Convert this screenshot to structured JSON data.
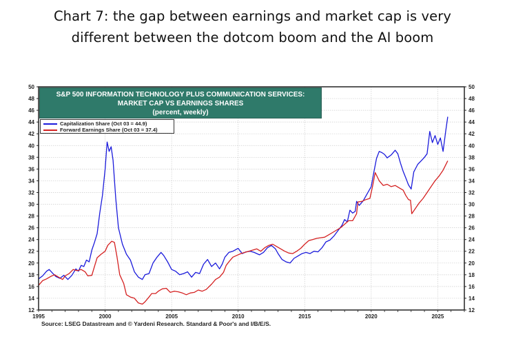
{
  "headline": {
    "line1": "Chart 7: the gap between earnings and market cap is very",
    "line2": "different between the dotcom boom and the AI boom"
  },
  "chart_box": {
    "title_line1": "S&P 500 INFORMATION TECHNOLOGY PLUS COMMUNICATION SERVICES:",
    "title_line2": "MARKET CAP VS EARNINGS SHARES",
    "title_line3": "(percent, weekly)",
    "title_bg": "#2f7a6a"
  },
  "legend": {
    "items": [
      {
        "label": "Capitalization Share  (Oct 03 = 44.9)",
        "color": "#1a1adb"
      },
      {
        "label": "Forward Earnings Share (Oct 03 = 37.4)",
        "color": "#d42020"
      }
    ]
  },
  "source": "Source: LSEG Datastream and © Yardeni Research. Standard & Poor's and I/B/E/S.",
  "chart_data": {
    "type": "line",
    "title": "S&P 500 INFORMATION TECHNOLOGY PLUS COMMUNICATION SERVICES: MARKET CAP VS EARNINGS SHARES (percent, weekly)",
    "xlabel": "",
    "ylabel": "percent",
    "xlim": [
      1995,
      2027
    ],
    "ylim": [
      12,
      50
    ],
    "x_ticks": [
      "1995",
      "2000",
      "2005",
      "2010",
      "2015",
      "2020",
      "2025"
    ],
    "y_ticks": [
      12,
      14,
      16,
      18,
      20,
      22,
      24,
      26,
      28,
      30,
      32,
      34,
      36,
      38,
      40,
      42,
      44,
      46,
      48,
      50
    ],
    "grid": true,
    "legend_position": "top-left",
    "series": [
      {
        "name": "Capitalization Share (Oct 03 = 44.9)",
        "color": "#1a1adb",
        "points": [
          [
            1995.0,
            17.3
          ],
          [
            1995.3,
            17.8
          ],
          [
            1995.6,
            18.6
          ],
          [
            1995.8,
            18.9
          ],
          [
            1996.0,
            18.4
          ],
          [
            1996.3,
            17.7
          ],
          [
            1996.6,
            17.4
          ],
          [
            1996.9,
            17.9
          ],
          [
            1997.2,
            17.2
          ],
          [
            1997.5,
            17.9
          ],
          [
            1997.8,
            19.0
          ],
          [
            1998.0,
            18.6
          ],
          [
            1998.2,
            19.6
          ],
          [
            1998.4,
            19.4
          ],
          [
            1998.6,
            20.5
          ],
          [
            1998.8,
            20.2
          ],
          [
            1999.0,
            22.2
          ],
          [
            1999.2,
            23.5
          ],
          [
            1999.4,
            25.0
          ],
          [
            1999.6,
            28.5
          ],
          [
            1999.8,
            31.5
          ],
          [
            2000.0,
            36.0
          ],
          [
            2000.15,
            40.6
          ],
          [
            2000.3,
            39.0
          ],
          [
            2000.45,
            39.8
          ],
          [
            2000.6,
            37.5
          ],
          [
            2000.8,
            31.0
          ],
          [
            2001.0,
            26.0
          ],
          [
            2001.3,
            23.2
          ],
          [
            2001.6,
            21.5
          ],
          [
            2001.9,
            20.5
          ],
          [
            2002.2,
            18.5
          ],
          [
            2002.5,
            17.6
          ],
          [
            2002.8,
            17.2
          ],
          [
            2003.0,
            18.0
          ],
          [
            2003.3,
            18.2
          ],
          [
            2003.6,
            20.0
          ],
          [
            2003.9,
            21.0
          ],
          [
            2004.2,
            21.8
          ],
          [
            2004.4,
            21.3
          ],
          [
            2004.7,
            20.2
          ],
          [
            2005.0,
            18.9
          ],
          [
            2005.3,
            18.6
          ],
          [
            2005.6,
            18.0
          ],
          [
            2005.9,
            18.2
          ],
          [
            2006.2,
            18.5
          ],
          [
            2006.5,
            17.6
          ],
          [
            2006.8,
            18.4
          ],
          [
            2007.1,
            18.2
          ],
          [
            2007.4,
            19.8
          ],
          [
            2007.7,
            20.6
          ],
          [
            2008.0,
            19.4
          ],
          [
            2008.3,
            20.0
          ],
          [
            2008.6,
            19.0
          ],
          [
            2008.8,
            19.8
          ],
          [
            2009.0,
            21.0
          ],
          [
            2009.3,
            21.8
          ],
          [
            2009.6,
            22.0
          ],
          [
            2010.0,
            22.5
          ],
          [
            2010.3,
            21.6
          ],
          [
            2010.6,
            21.9
          ],
          [
            2010.9,
            22.0
          ],
          [
            2011.2,
            21.8
          ],
          [
            2011.6,
            21.4
          ],
          [
            2011.9,
            21.8
          ],
          [
            2012.2,
            22.6
          ],
          [
            2012.5,
            23.0
          ],
          [
            2012.8,
            22.4
          ],
          [
            2013.0,
            21.6
          ],
          [
            2013.3,
            20.6
          ],
          [
            2013.6,
            20.2
          ],
          [
            2013.9,
            20.0
          ],
          [
            2014.2,
            20.8
          ],
          [
            2014.5,
            21.2
          ],
          [
            2014.8,
            21.6
          ],
          [
            2015.1,
            21.8
          ],
          [
            2015.4,
            21.6
          ],
          [
            2015.7,
            22.0
          ],
          [
            2016.0,
            21.9
          ],
          [
            2016.3,
            22.6
          ],
          [
            2016.6,
            23.6
          ],
          [
            2016.9,
            23.9
          ],
          [
            2017.2,
            24.6
          ],
          [
            2017.5,
            25.5
          ],
          [
            2017.8,
            26.4
          ],
          [
            2018.0,
            27.4
          ],
          [
            2018.2,
            27.0
          ],
          [
            2018.4,
            29.0
          ],
          [
            2018.6,
            28.5
          ],
          [
            2018.8,
            28.8
          ],
          [
            2018.9,
            30.5
          ],
          [
            2019.1,
            29.8
          ],
          [
            2019.4,
            30.6
          ],
          [
            2019.7,
            31.8
          ],
          [
            2020.0,
            33.0
          ],
          [
            2020.2,
            35.5
          ],
          [
            2020.4,
            37.8
          ],
          [
            2020.6,
            39.0
          ],
          [
            2020.8,
            38.8
          ],
          [
            2021.0,
            38.5
          ],
          [
            2021.2,
            37.9
          ],
          [
            2021.5,
            38.4
          ],
          [
            2021.8,
            39.2
          ],
          [
            2022.0,
            38.6
          ],
          [
            2022.2,
            37.0
          ],
          [
            2022.4,
            35.6
          ],
          [
            2022.6,
            34.5
          ],
          [
            2022.8,
            33.3
          ],
          [
            2023.0,
            32.6
          ],
          [
            2023.2,
            35.5
          ],
          [
            2023.5,
            36.8
          ],
          [
            2023.8,
            37.5
          ],
          [
            2024.0,
            38.0
          ],
          [
            2024.2,
            38.6
          ],
          [
            2024.4,
            42.4
          ],
          [
            2024.6,
            40.5
          ],
          [
            2024.8,
            41.7
          ],
          [
            2025.0,
            40.2
          ],
          [
            2025.2,
            41.3
          ],
          [
            2025.4,
            39.0
          ],
          [
            2025.6,
            42.5
          ],
          [
            2025.75,
            44.9
          ]
        ]
      },
      {
        "name": "Forward Earnings Share (Oct 03 = 37.4)",
        "color": "#d42020",
        "points": [
          [
            1995.0,
            16.2
          ],
          [
            1995.3,
            17.0
          ],
          [
            1995.6,
            17.3
          ],
          [
            1995.9,
            17.7
          ],
          [
            1996.2,
            18.0
          ],
          [
            1996.5,
            17.6
          ],
          [
            1996.8,
            17.2
          ],
          [
            1997.0,
            17.8
          ],
          [
            1997.3,
            18.2
          ],
          [
            1997.6,
            18.9
          ],
          [
            1997.9,
            18.7
          ],
          [
            1998.2,
            18.9
          ],
          [
            1998.5,
            18.5
          ],
          [
            1998.7,
            17.8
          ],
          [
            1999.0,
            17.9
          ],
          [
            1999.2,
            19.4
          ],
          [
            1999.4,
            20.9
          ],
          [
            1999.7,
            21.5
          ],
          [
            2000.0,
            22.0
          ],
          [
            2000.2,
            23.0
          ],
          [
            2000.5,
            23.7
          ],
          [
            2000.7,
            23.5
          ],
          [
            2000.9,
            21.0
          ],
          [
            2001.1,
            18.0
          ],
          [
            2001.4,
            16.5
          ],
          [
            2001.6,
            14.6
          ],
          [
            2001.9,
            14.2
          ],
          [
            2002.2,
            14.0
          ],
          [
            2002.5,
            13.2
          ],
          [
            2002.8,
            13.0
          ],
          [
            2003.0,
            13.4
          ],
          [
            2003.3,
            14.2
          ],
          [
            2003.5,
            14.8
          ],
          [
            2003.8,
            14.8
          ],
          [
            2004.0,
            15.2
          ],
          [
            2004.3,
            15.6
          ],
          [
            2004.6,
            15.7
          ],
          [
            2004.9,
            15.0
          ],
          [
            2005.2,
            15.2
          ],
          [
            2005.5,
            15.1
          ],
          [
            2005.8,
            14.9
          ],
          [
            2006.1,
            14.6
          ],
          [
            2006.4,
            14.9
          ],
          [
            2006.7,
            15.0
          ],
          [
            2007.0,
            15.4
          ],
          [
            2007.3,
            15.2
          ],
          [
            2007.6,
            15.5
          ],
          [
            2008.0,
            16.4
          ],
          [
            2008.3,
            17.2
          ],
          [
            2008.6,
            17.6
          ],
          [
            2008.9,
            18.4
          ],
          [
            2009.1,
            19.6
          ],
          [
            2009.3,
            20.2
          ],
          [
            2009.6,
            21.0
          ],
          [
            2009.9,
            21.3
          ],
          [
            2010.2,
            21.6
          ],
          [
            2010.5,
            21.8
          ],
          [
            2010.8,
            22.0
          ],
          [
            2011.1,
            22.2
          ],
          [
            2011.4,
            22.4
          ],
          [
            2011.7,
            22.0
          ],
          [
            2012.0,
            22.6
          ],
          [
            2012.3,
            23.0
          ],
          [
            2012.6,
            23.2
          ],
          [
            2012.9,
            22.8
          ],
          [
            2013.2,
            22.4
          ],
          [
            2013.5,
            22.0
          ],
          [
            2013.8,
            21.7
          ],
          [
            2014.1,
            21.6
          ],
          [
            2014.4,
            22.0
          ],
          [
            2014.7,
            22.5
          ],
          [
            2015.0,
            23.2
          ],
          [
            2015.3,
            23.8
          ],
          [
            2015.6,
            24.0
          ],
          [
            2015.9,
            24.2
          ],
          [
            2016.2,
            24.3
          ],
          [
            2016.5,
            24.4
          ],
          [
            2016.8,
            24.8
          ],
          [
            2017.1,
            25.2
          ],
          [
            2017.4,
            25.6
          ],
          [
            2017.7,
            26.0
          ],
          [
            2018.0,
            26.6
          ],
          [
            2018.3,
            27.2
          ],
          [
            2018.6,
            27.2
          ],
          [
            2018.9,
            28.4
          ],
          [
            2019.0,
            30.4
          ],
          [
            2019.3,
            30.5
          ],
          [
            2019.6,
            30.8
          ],
          [
            2019.9,
            31.0
          ],
          [
            2020.1,
            33.0
          ],
          [
            2020.3,
            35.4
          ],
          [
            2020.6,
            34.0
          ],
          [
            2020.9,
            33.2
          ],
          [
            2021.2,
            33.4
          ],
          [
            2021.5,
            33.0
          ],
          [
            2021.8,
            33.2
          ],
          [
            2022.1,
            32.8
          ],
          [
            2022.4,
            32.4
          ],
          [
            2022.6,
            31.5
          ],
          [
            2022.8,
            30.8
          ],
          [
            2022.95,
            30.7
          ],
          [
            2023.05,
            28.4
          ],
          [
            2023.3,
            29.2
          ],
          [
            2023.6,
            30.2
          ],
          [
            2023.9,
            31.0
          ],
          [
            2024.2,
            32.0
          ],
          [
            2024.5,
            33.0
          ],
          [
            2024.8,
            34.0
          ],
          [
            2025.1,
            34.8
          ],
          [
            2025.4,
            35.8
          ],
          [
            2025.75,
            37.4
          ]
        ]
      }
    ]
  }
}
